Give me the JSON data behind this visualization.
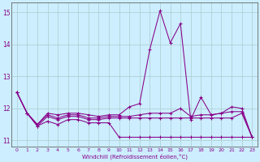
{
  "xlabel": "Windchill (Refroidissement éolien,°C)",
  "bg_color": "#cceeff",
  "grid_color": "#aacccc",
  "line_color": "#880088",
  "xlim": [
    -0.5,
    23.5
  ],
  "ylim": [
    10.8,
    15.3
  ],
  "yticks": [
    11,
    12,
    13,
    14,
    15
  ],
  "xticks": [
    0,
    1,
    2,
    3,
    4,
    5,
    6,
    7,
    8,
    9,
    10,
    11,
    12,
    13,
    14,
    15,
    16,
    17,
    18,
    19,
    20,
    21,
    22,
    23
  ],
  "lines": [
    [
      12.5,
      11.85,
      11.45,
      11.6,
      11.5,
      11.65,
      11.65,
      11.55,
      11.55,
      11.55,
      11.1,
      11.1,
      11.1,
      11.1,
      11.1,
      11.1,
      11.1,
      11.1,
      11.1,
      11.1,
      11.1,
      11.1,
      11.1,
      11.1
    ],
    [
      12.5,
      11.85,
      11.45,
      11.75,
      11.65,
      11.75,
      11.75,
      11.65,
      11.65,
      11.7,
      11.7,
      11.7,
      11.7,
      11.7,
      11.7,
      11.7,
      11.7,
      11.7,
      11.7,
      11.7,
      11.7,
      11.7,
      11.85,
      11.1
    ],
    [
      12.5,
      11.85,
      11.5,
      11.8,
      11.7,
      11.8,
      11.8,
      11.7,
      11.7,
      11.75,
      11.75,
      11.75,
      11.8,
      11.85,
      11.85,
      11.85,
      12.0,
      11.75,
      11.8,
      11.8,
      11.85,
      11.9,
      11.9,
      11.1
    ],
    [
      12.5,
      11.85,
      11.5,
      11.85,
      11.8,
      11.85,
      11.85,
      11.8,
      11.75,
      11.8,
      11.8,
      12.05,
      12.15,
      13.85,
      15.05,
      14.05,
      14.65,
      11.65,
      12.35,
      11.8,
      11.85,
      12.05,
      12.0,
      11.1
    ]
  ],
  "marker": "+"
}
